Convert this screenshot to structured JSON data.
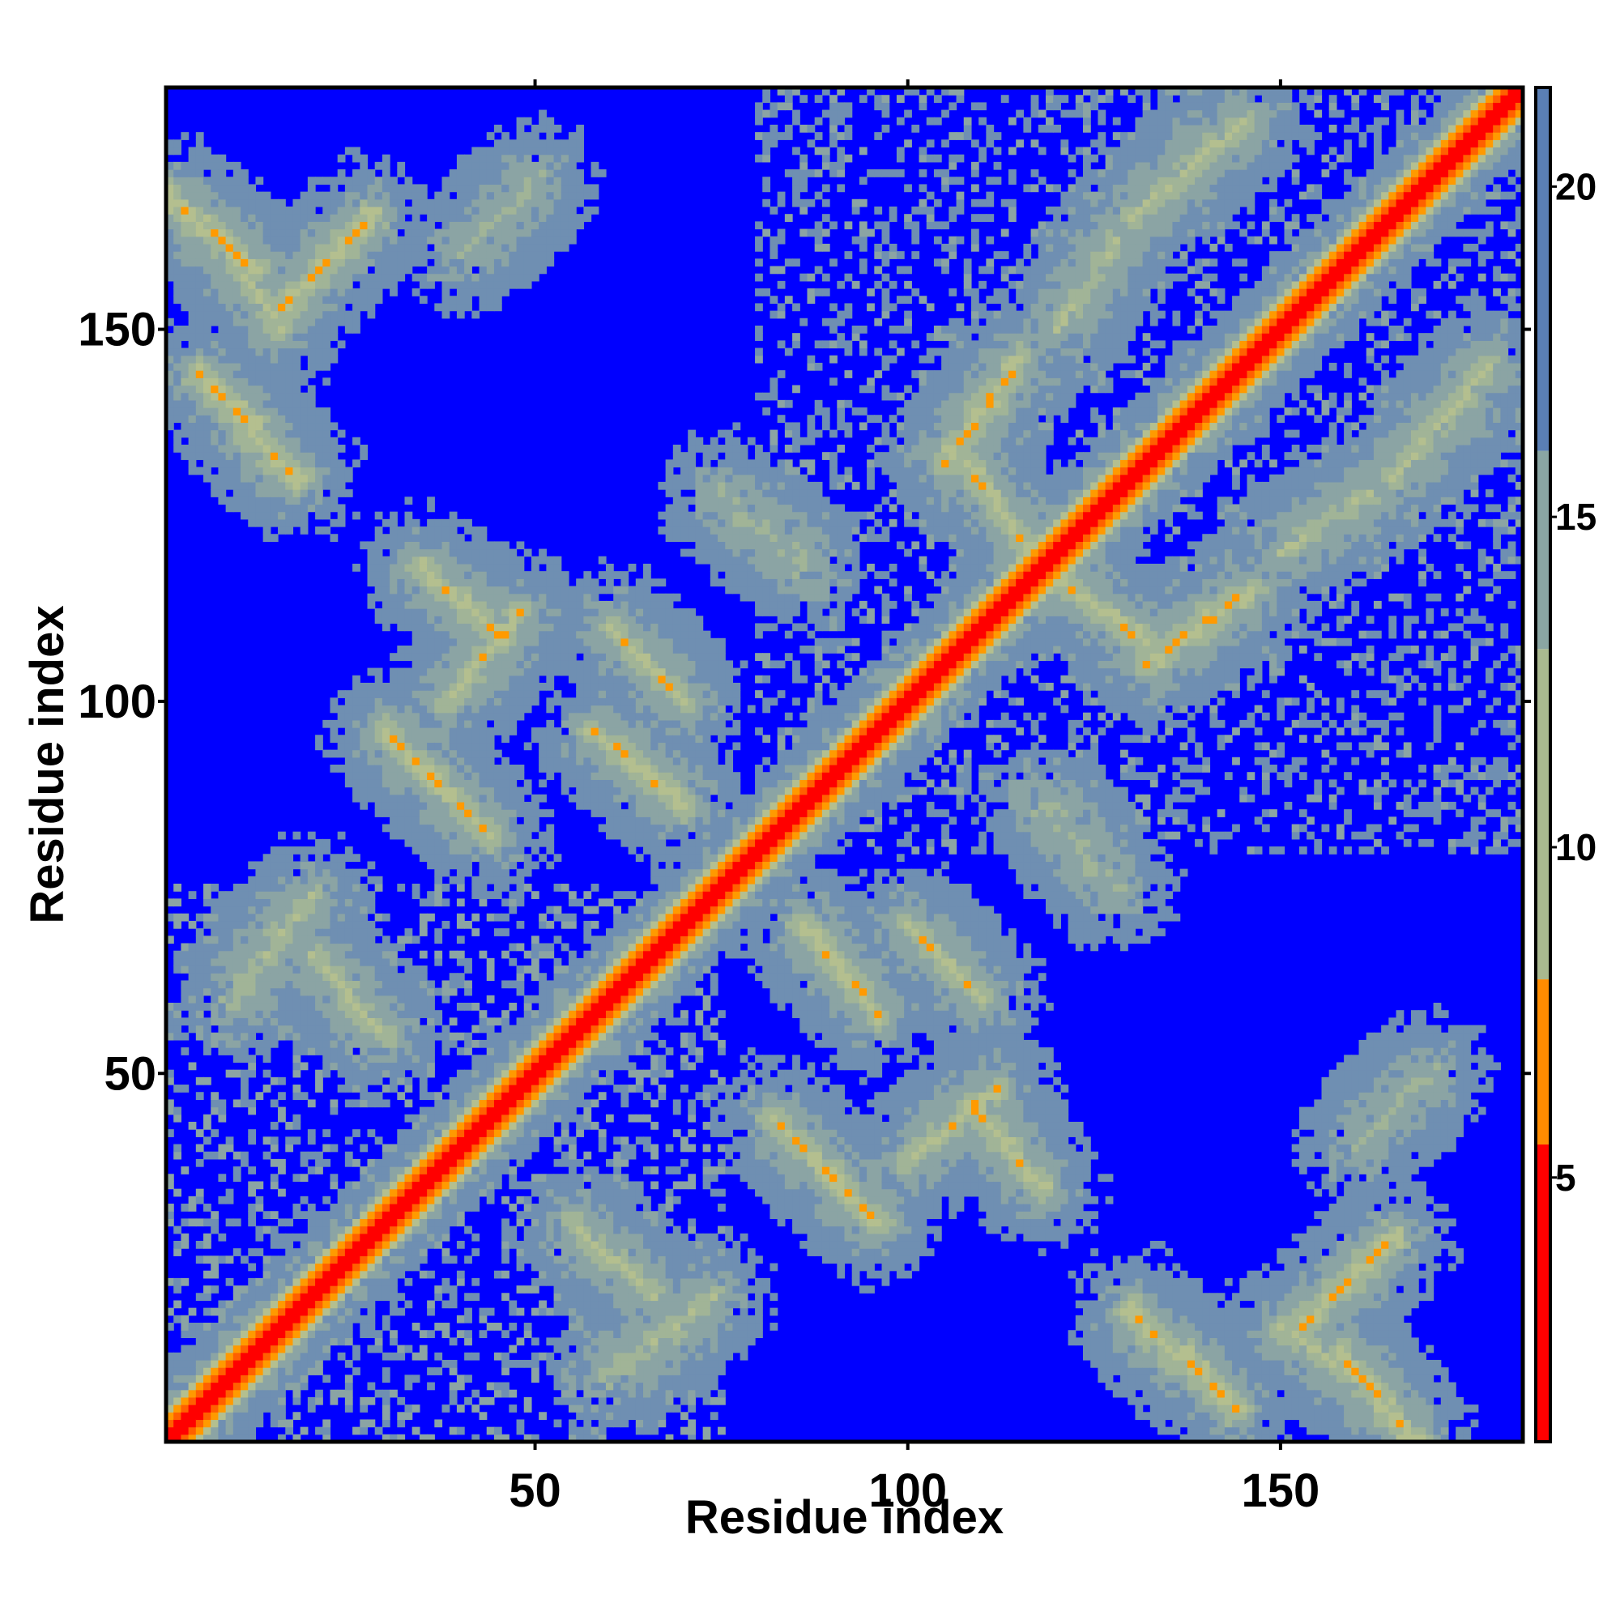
{
  "chart_data": {
    "type": "heatmap",
    "subtype": "residue distance map",
    "xlabel": "Residue index",
    "ylabel": "Residue index",
    "n_residues": 182,
    "xlim": [
      0.5,
      182.5
    ],
    "ylim": [
      0.5,
      182.5
    ],
    "x_ticks": [
      50,
      100,
      150
    ],
    "y_ticks": [
      50,
      100,
      150
    ],
    "x_tick_labels": [
      "50",
      "100",
      "150"
    ],
    "y_tick_labels": [
      "50",
      "100",
      "150"
    ],
    "colorbar": {
      "range": [
        1,
        21.5
      ],
      "ticks": [
        5,
        10,
        15,
        20
      ],
      "tick_labels": [
        "5",
        "10",
        "15",
        "20"
      ],
      "segments": [
        {
          "from": 1,
          "to": 5.5,
          "color": "#ff0000"
        },
        {
          "from": 5.5,
          "to": 8,
          "color": "#ff8c00"
        },
        {
          "from": 8,
          "to": 13,
          "color": "#a9b98f"
        },
        {
          "from": 13,
          "to": 16,
          "color": "#8aa6a3"
        },
        {
          "from": 16,
          "to": 21.5,
          "color": "#5a7fb5"
        }
      ]
    },
    "color_scale": [
      {
        "max": 3.5,
        "color": "#ff0000"
      },
      {
        "max": 6,
        "color": "#ff6000"
      },
      {
        "max": 8,
        "color": "#ff9a00"
      },
      {
        "max": 10.5,
        "color": "#b4bf8f"
      },
      {
        "max": 13,
        "color": "#a1b497"
      },
      {
        "max": 16,
        "color": "#8ba4a4"
      },
      {
        "max": 20,
        "color": "#6f8fb2"
      },
      {
        "max": 999,
        "color": "#0000ff"
      }
    ],
    "background_color": "#0000ff",
    "value_description": "pairwise residue distance; symmetric about the diagonal",
    "secondary_structure_contacts": [
      {
        "a": [
          1,
          12
        ],
        "b": [
          158,
          168
        ],
        "dir": "anti",
        "d": 6.5,
        "spread": 3,
        "len_fade": 0
      },
      {
        "a": [
          15,
          28
        ],
        "b": [
          152,
          165
        ],
        "dir": "par",
        "d": 6.5,
        "spread": 3,
        "len_fade": 0
      },
      {
        "a": [
          10,
          20
        ],
        "b": [
          60,
          74
        ],
        "dir": "par",
        "d": 9,
        "spread": 4,
        "len_fade": 0
      },
      {
        "a": [
          38,
          48
        ],
        "b": [
          100,
          112
        ],
        "dir": "par",
        "d": 7.5,
        "spread": 3,
        "len_fade": 0
      },
      {
        "a": [
          60,
          70
        ],
        "b": [
          100,
          110
        ],
        "dir": "anti",
        "d": 7.5,
        "spread": 3,
        "len_fade": 0
      },
      {
        "a": [
          82,
          96
        ],
        "b": [
          30,
          44
        ],
        "dir": "anti",
        "d": 7,
        "spread": 3,
        "len_fade": 0
      },
      {
        "a": [
          86,
          96
        ],
        "b": [
          58,
          70
        ],
        "dir": "anti",
        "d": 7,
        "spread": 3,
        "len_fade": 0
      },
      {
        "a": [
          108,
          118
        ],
        "b": [
          35,
          46
        ],
        "dir": "anti",
        "d": 7,
        "spread": 3,
        "len_fade": 0
      },
      {
        "a": [
          105,
          115
        ],
        "b": [
          132,
          146
        ],
        "dir": "par",
        "d": 7,
        "spread": 3,
        "len_fade": 0
      },
      {
        "a": [
          130,
          144
        ],
        "b": [
          5,
          18
        ],
        "dir": "anti",
        "d": 6.5,
        "spread": 3,
        "len_fade": 0
      },
      {
        "a": [
          118,
          132
        ],
        "b": [
          108,
          118
        ],
        "dir": "anti",
        "d": 7.5,
        "spread": 3,
        "len_fade": 0
      },
      {
        "a": [
          150,
          162
        ],
        "b": [
          8,
          16
        ],
        "dir": "anti",
        "d": 8,
        "spread": 3,
        "len_fade": 0
      },
      {
        "a": [
          40,
          50
        ],
        "b": [
          160,
          170
        ],
        "dir": "par",
        "d": 11,
        "spread": 5,
        "len_fade": 0
      },
      {
        "a": [
          55,
          66
        ],
        "b": [
          20,
          30
        ],
        "dir": "anti",
        "d": 8,
        "spread": 4,
        "len_fade": 0
      },
      {
        "a": [
          165,
          178
        ],
        "b": [
          130,
          145
        ],
        "dir": "par",
        "d": 8,
        "spread": 4,
        "len_fade": 0
      },
      {
        "a": [
          120,
          128
        ],
        "b": [
          150,
          162
        ],
        "dir": "par",
        "d": 9,
        "spread": 4,
        "len_fade": 0
      },
      {
        "a": [
          75,
          86
        ],
        "b": [
          118,
          128
        ],
        "dir": "anti",
        "d": 11,
        "spread": 5,
        "len_fade": 0
      }
    ],
    "domains": [
      {
        "range": [
          1,
          75
        ],
        "d": 14,
        "weight": 0.35
      },
      {
        "range": [
          80,
          182
        ],
        "d": 15,
        "weight": 0.3
      }
    ]
  }
}
